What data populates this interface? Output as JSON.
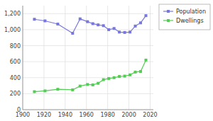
{
  "chart_data": {
    "type": "line",
    "x": [
      1911,
      1921,
      1933,
      1947,
      1954,
      1961,
      1966,
      1971,
      1976,
      1981,
      1986,
      1991,
      1996,
      2001,
      2006,
      2011,
      2016
    ],
    "series": [
      {
        "name": "Population",
        "color": "#7777dd",
        "values": [
          1130,
          1110,
          1070,
          955,
          1135,
          1100,
          1075,
          1060,
          1050,
          1000,
          1015,
          970,
          965,
          970,
          1045,
          1085,
          1175
        ]
      },
      {
        "name": "Dwellings",
        "color": "#55cc55",
        "values": [
          225,
          235,
          255,
          248,
          295,
          315,
          310,
          330,
          375,
          390,
          400,
          415,
          420,
          435,
          470,
          478,
          620
        ]
      }
    ],
    "xlim": [
      1900,
      2023
    ],
    "ylim": [
      0,
      1300
    ],
    "xticks": [
      1900,
      1920,
      1940,
      1960,
      1980,
      2000,
      2020
    ],
    "yticks": [
      0,
      200,
      400,
      600,
      800,
      {
        "value": 1000,
        "label": "1,000"
      },
      {
        "value": 1200,
        "label": "1,200"
      }
    ],
    "grid": true,
    "legend": "right",
    "marker": "square"
  }
}
